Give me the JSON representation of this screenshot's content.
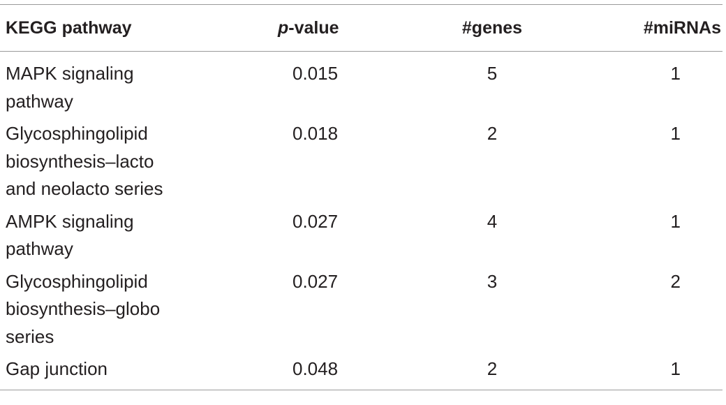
{
  "table": {
    "headers": {
      "pathway": "KEGG pathway",
      "pvalue_prefix": "p",
      "pvalue_suffix": "-value",
      "genes": "#genes",
      "mirnas": "#miRNAs"
    },
    "rows": [
      {
        "pathway": "MAPK signaling\npathway",
        "pvalue": "0.015",
        "genes": "5",
        "mirnas": "1"
      },
      {
        "pathway": "Glycosphingolipid\nbiosynthesis–lacto\nand neolacto series",
        "pvalue": "0.018",
        "genes": "2",
        "mirnas": "1"
      },
      {
        "pathway": "AMPK signaling\npathway",
        "pvalue": "0.027",
        "genes": "4",
        "mirnas": "1"
      },
      {
        "pathway": "Glycosphingolipid\nbiosynthesis–globo\nseries",
        "pvalue": "0.027",
        "genes": "3",
        "mirnas": "2"
      },
      {
        "pathway": "Gap junction",
        "pvalue": "0.048",
        "genes": "2",
        "mirnas": "1"
      }
    ]
  }
}
